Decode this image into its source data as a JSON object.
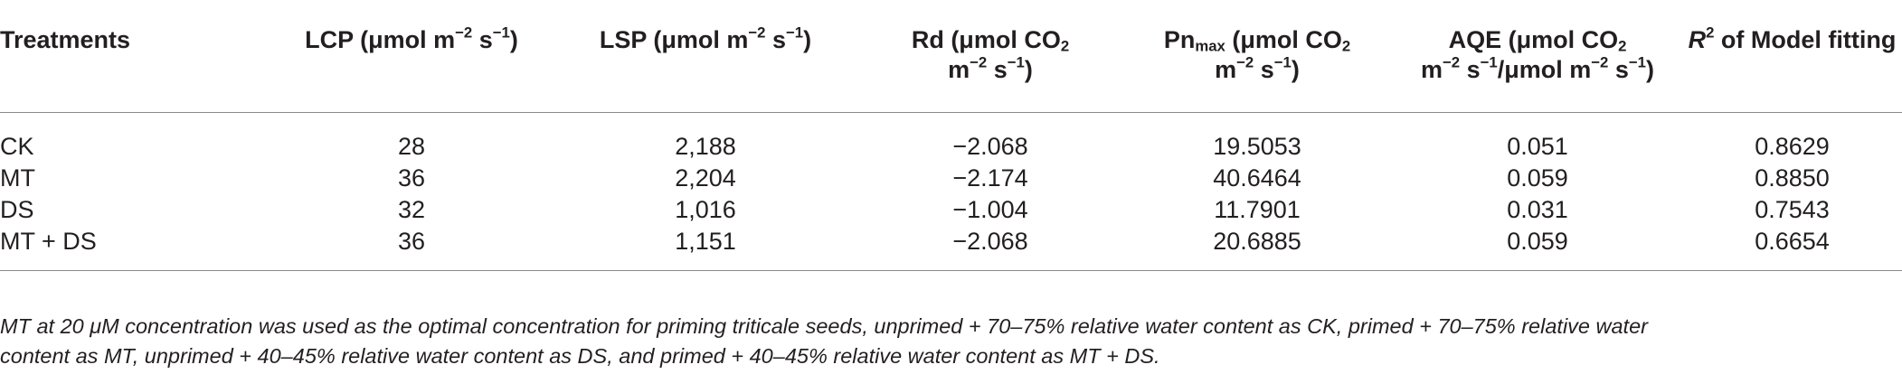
{
  "table": {
    "headers": {
      "treatments": "Treatments",
      "lcp": {
        "pre": "LCP (μmol m",
        "sup1": "−2",
        "mid": " s",
        "sup2": "−1",
        "post": ")"
      },
      "lsp": {
        "pre": "LSP (μmol m",
        "sup1": "−2",
        "mid": " s",
        "sup2": "−1",
        "post": ")"
      },
      "rd": {
        "line1_pre": "Rd (μmol CO",
        "line1_sub": "2",
        "line2_pre": "m",
        "line2_sup1": "−2",
        "line2_mid": " s",
        "line2_sup2": "−1",
        "line2_post": ")"
      },
      "pn": {
        "line1_a": "Pn",
        "line1_sub": "max",
        "line1_b": " (μmol CO",
        "line1_sub2": "2",
        "line2_pre": "m",
        "line2_sup1": "−2",
        "line2_mid": " s",
        "line2_sup2": "−1",
        "line2_post": ")"
      },
      "aqe": {
        "line1": "AQE (μmol CO",
        "line1_sub": "2",
        "line2_pre": "m",
        "line2_sup1": "−2",
        "line2_mid": " s",
        "line2_sup2": "−1",
        "line2_mid2": "/μmol m",
        "line2_sup3": "−2",
        "line2_mid3": " s",
        "line2_sup4": "−1",
        "line2_post": ")"
      },
      "r2": {
        "italic": "R",
        "sup": "2",
        "rest": " of Model fitting"
      }
    },
    "rows": [
      {
        "treatment": "CK",
        "lcp": "28",
        "lsp": "2,188",
        "rd": "−2.068",
        "pn": "19.5053",
        "aqe": "0.051",
        "r2": "0.8629"
      },
      {
        "treatment": "MT",
        "lcp": "36",
        "lsp": "2,204",
        "rd": "−2.174",
        "pn": "40.6464",
        "aqe": "0.059",
        "r2": "0.8850"
      },
      {
        "treatment": "DS",
        "lcp": "32",
        "lsp": "1,016",
        "rd": "−1.004",
        "pn": "11.7901",
        "aqe": "0.031",
        "r2": "0.7543"
      },
      {
        "treatment": "MT + DS",
        "lcp": "36",
        "lsp": "1,151",
        "rd": "−2.068",
        "pn": "20.6885",
        "aqe": "0.059",
        "r2": "0.6654"
      }
    ]
  },
  "footnote": {
    "line1": "MT at 20 μM concentration was used as the optimal concentration for priming triticale seeds, unprimed + 70–75% relative water content as CK, primed + 70–75% relative water",
    "line2": "content as MT, unprimed + 40–45% relative water content as DS, and primed + 40–45% relative water content as MT + DS."
  }
}
